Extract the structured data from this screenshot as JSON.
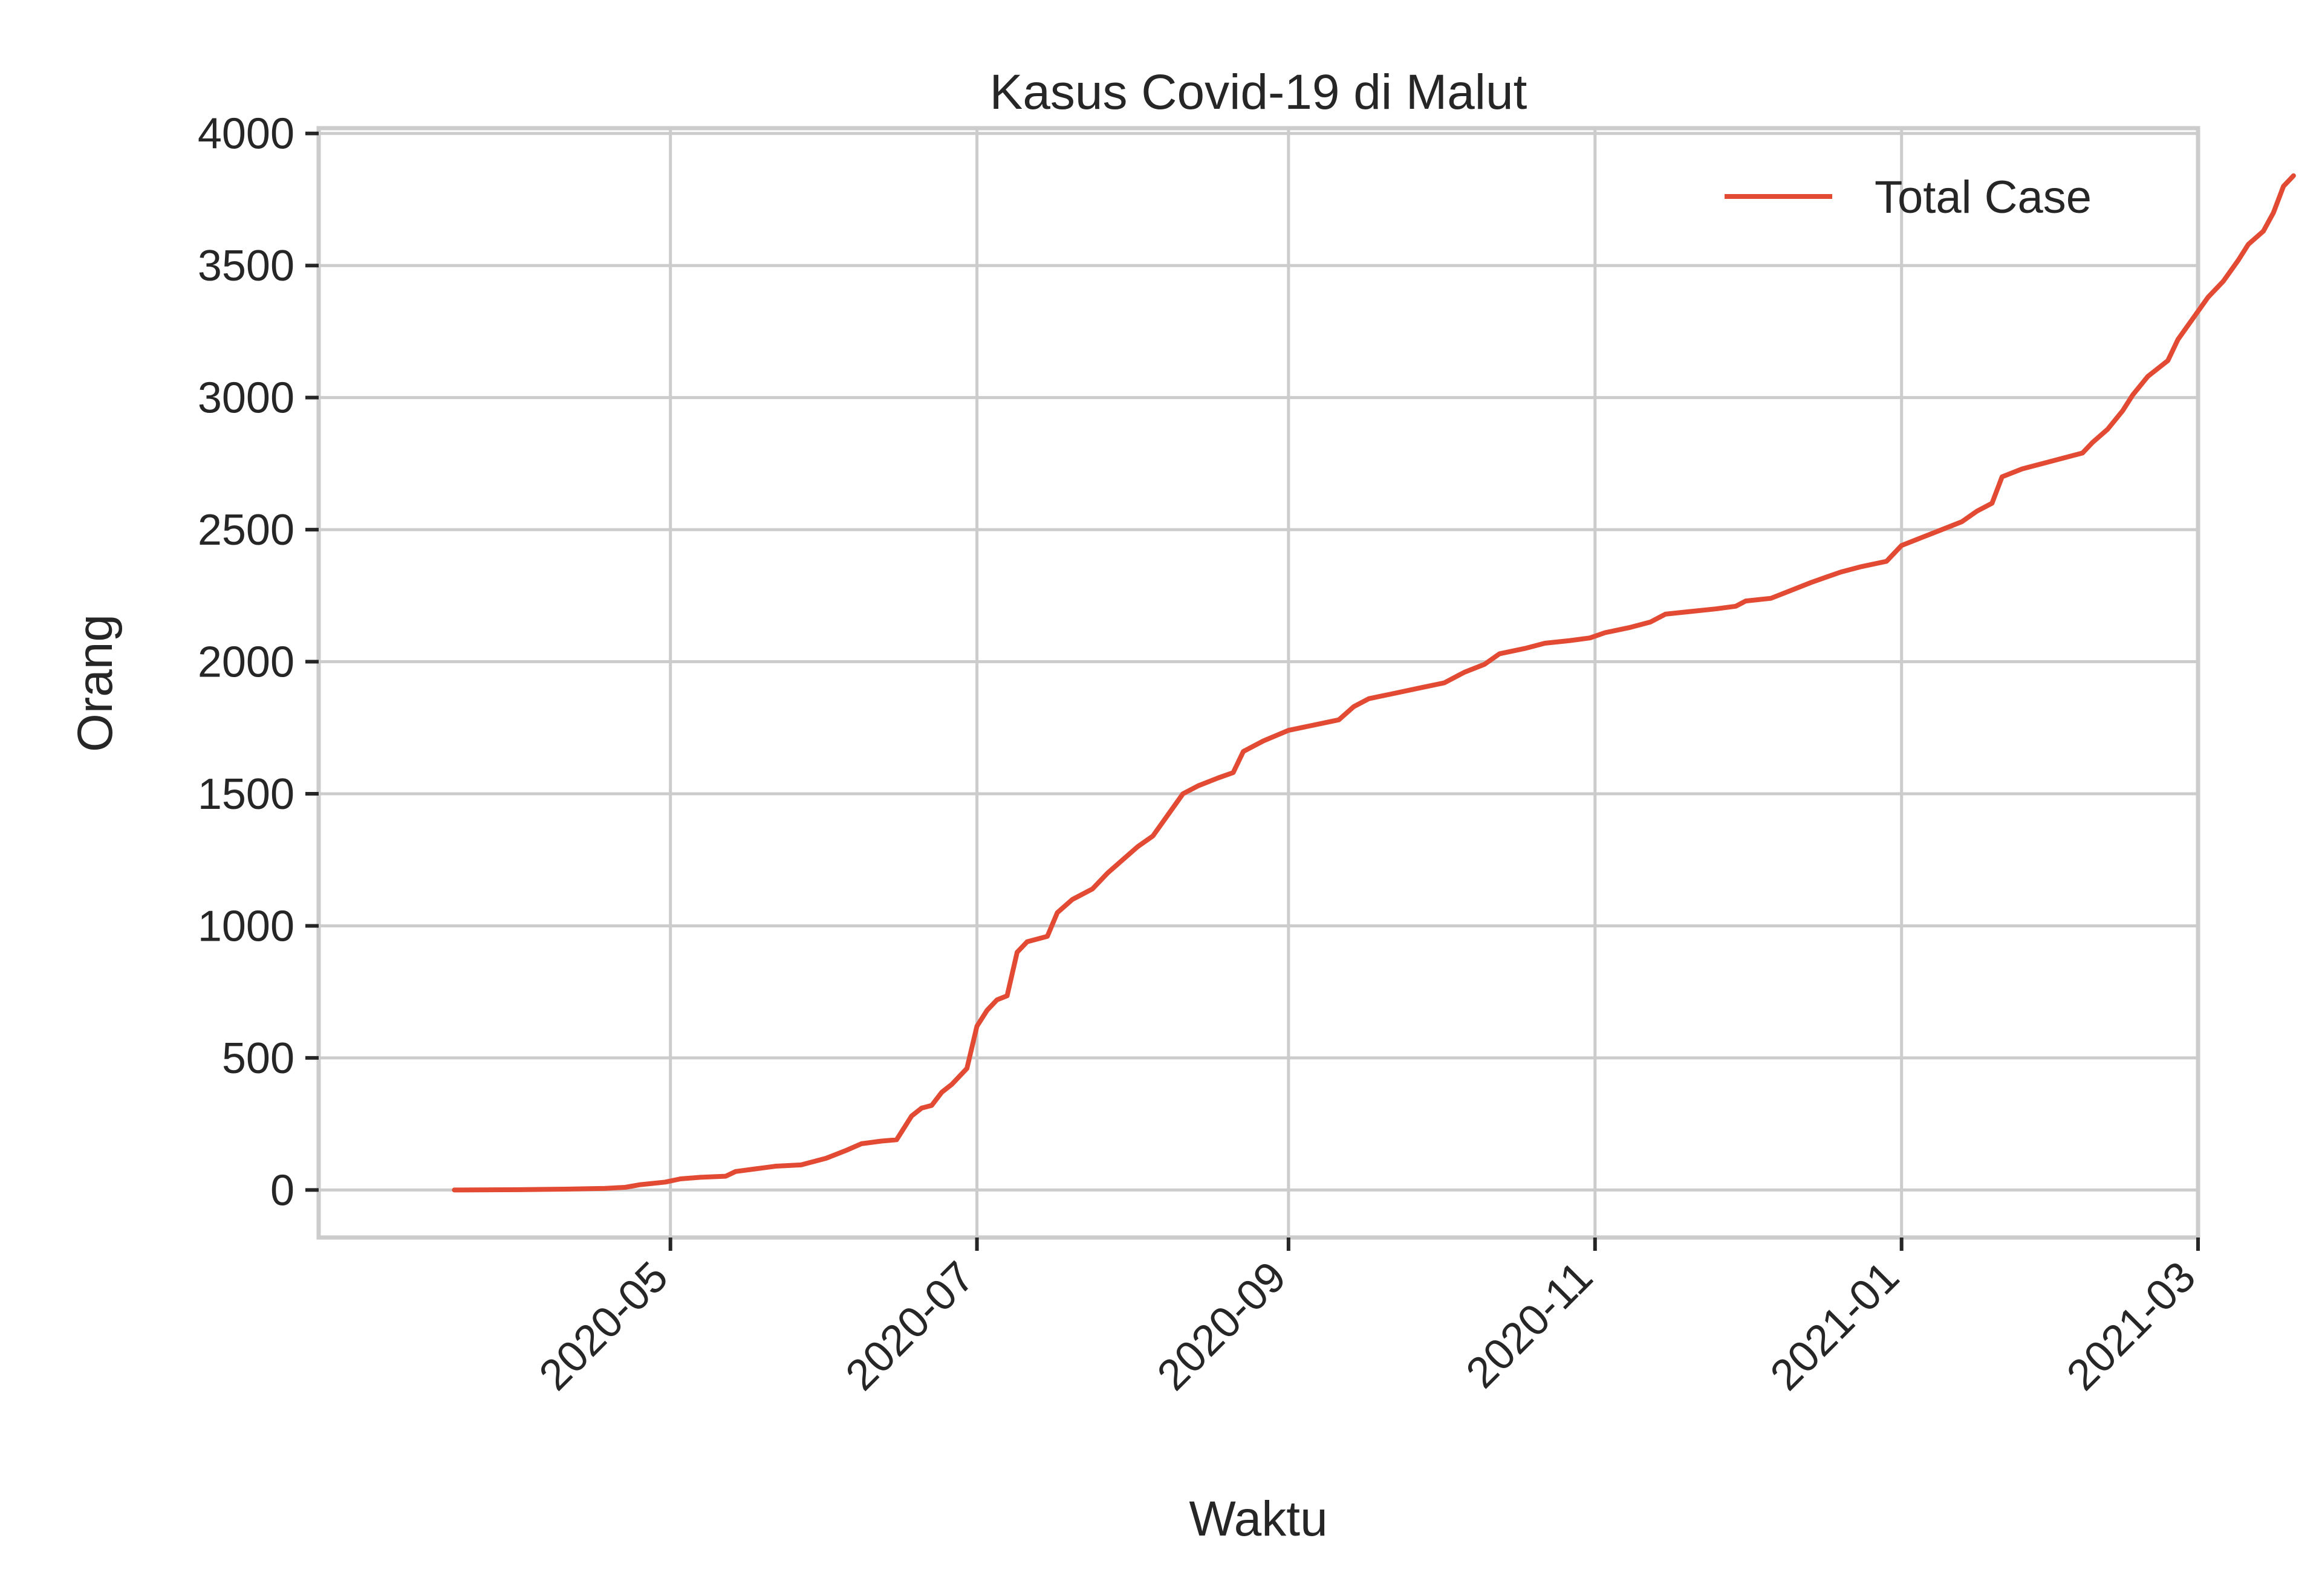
{
  "chart_data": {
    "type": "line",
    "title": "Kasus Covid-19 di Malut",
    "xlabel": "Waktu",
    "ylabel": "Orang",
    "xlim": [
      "2020-02-21",
      "2021-03-01"
    ],
    "ylim": [
      -180,
      4020
    ],
    "xticks": [
      "2020-05",
      "2020-07",
      "2020-09",
      "2020-11",
      "2021-01",
      "2021-03"
    ],
    "xtick_dates": [
      "2020-05-01",
      "2020-07-01",
      "2020-09-01",
      "2020-11-01",
      "2021-01-01",
      "2021-03-01"
    ],
    "yticks": [
      "0",
      "500",
      "1000",
      "1500",
      "2000",
      "2500",
      "3000",
      "3500",
      "4000"
    ],
    "ytick_values": [
      0,
      500,
      1000,
      1500,
      2000,
      2500,
      3000,
      3500,
      4000
    ],
    "grid": true,
    "legend_position": "top-right",
    "series": [
      {
        "name": "Total Case",
        "color": "#e24a33",
        "points": [
          [
            "2020-03-19",
            0
          ],
          [
            "2020-04-01",
            1
          ],
          [
            "2020-04-10",
            3
          ],
          [
            "2020-04-18",
            6
          ],
          [
            "2020-04-22",
            10
          ],
          [
            "2020-04-25",
            20
          ],
          [
            "2020-04-30",
            30
          ],
          [
            "2020-05-03",
            42
          ],
          [
            "2020-05-07",
            48
          ],
          [
            "2020-05-12",
            52
          ],
          [
            "2020-05-14",
            70
          ],
          [
            "2020-05-18",
            80
          ],
          [
            "2020-05-22",
            90
          ],
          [
            "2020-05-27",
            95
          ],
          [
            "2020-06-01",
            120
          ],
          [
            "2020-06-05",
            150
          ],
          [
            "2020-06-08",
            175
          ],
          [
            "2020-06-12",
            185
          ],
          [
            "2020-06-15",
            190
          ],
          [
            "2020-06-18",
            280
          ],
          [
            "2020-06-20",
            310
          ],
          [
            "2020-06-22",
            320
          ],
          [
            "2020-06-24",
            370
          ],
          [
            "2020-06-26",
            400
          ],
          [
            "2020-06-29",
            460
          ],
          [
            "2020-07-01",
            620
          ],
          [
            "2020-07-03",
            680
          ],
          [
            "2020-07-05",
            720
          ],
          [
            "2020-07-07",
            735
          ],
          [
            "2020-07-09",
            900
          ],
          [
            "2020-07-11",
            940
          ],
          [
            "2020-07-15",
            960
          ],
          [
            "2020-07-17",
            1050
          ],
          [
            "2020-07-20",
            1100
          ],
          [
            "2020-07-24",
            1140
          ],
          [
            "2020-07-27",
            1200
          ],
          [
            "2020-07-30",
            1250
          ],
          [
            "2020-08-02",
            1300
          ],
          [
            "2020-08-05",
            1340
          ],
          [
            "2020-08-08",
            1420
          ],
          [
            "2020-08-11",
            1500
          ],
          [
            "2020-08-14",
            1530
          ],
          [
            "2020-08-18",
            1560
          ],
          [
            "2020-08-21",
            1580
          ],
          [
            "2020-08-23",
            1660
          ],
          [
            "2020-08-27",
            1700
          ],
          [
            "2020-09-01",
            1740
          ],
          [
            "2020-09-06",
            1760
          ],
          [
            "2020-09-11",
            1780
          ],
          [
            "2020-09-14",
            1830
          ],
          [
            "2020-09-17",
            1860
          ],
          [
            "2020-09-22",
            1880
          ],
          [
            "2020-09-27",
            1900
          ],
          [
            "2020-10-02",
            1920
          ],
          [
            "2020-10-06",
            1960
          ],
          [
            "2020-10-10",
            1990
          ],
          [
            "2020-10-13",
            2030
          ],
          [
            "2020-10-18",
            2050
          ],
          [
            "2020-10-22",
            2070
          ],
          [
            "2020-10-27",
            2080
          ],
          [
            "2020-10-31",
            2090
          ],
          [
            "2020-11-03",
            2110
          ],
          [
            "2020-11-08",
            2130
          ],
          [
            "2020-11-12",
            2150
          ],
          [
            "2020-11-15",
            2180
          ],
          [
            "2020-11-20",
            2190
          ],
          [
            "2020-11-25",
            2200
          ],
          [
            "2020-11-29",
            2210
          ],
          [
            "2020-12-01",
            2230
          ],
          [
            "2020-12-06",
            2240
          ],
          [
            "2020-12-10",
            2270
          ],
          [
            "2020-12-14",
            2300
          ],
          [
            "2020-12-17",
            2320
          ],
          [
            "2020-12-20",
            2340
          ],
          [
            "2020-12-24",
            2360
          ],
          [
            "2020-12-29",
            2380
          ],
          [
            "2021-01-01",
            2440
          ],
          [
            "2021-01-05",
            2470
          ],
          [
            "2021-01-09",
            2500
          ],
          [
            "2021-01-13",
            2530
          ],
          [
            "2021-01-16",
            2570
          ],
          [
            "2021-01-19",
            2600
          ],
          [
            "2021-01-21",
            2700
          ],
          [
            "2021-01-25",
            2730
          ],
          [
            "2021-01-29",
            2750
          ],
          [
            "2021-02-02",
            2770
          ],
          [
            "2021-02-06",
            2790
          ],
          [
            "2021-02-08",
            2830
          ],
          [
            "2021-02-11",
            2880
          ],
          [
            "2021-02-14",
            2950
          ],
          [
            "2021-02-16",
            3010
          ],
          [
            "2021-02-19",
            3080
          ],
          [
            "2021-02-23",
            3140
          ],
          [
            "2021-02-25",
            3220
          ],
          [
            "2021-02-28",
            3300
          ],
          [
            "2021-03-03",
            3380
          ],
          [
            "2021-03-06",
            3440
          ],
          [
            "2021-03-09",
            3520
          ],
          [
            "2021-03-11",
            3580
          ],
          [
            "2021-03-14",
            3630
          ],
          [
            "2021-03-16",
            3700
          ],
          [
            "2021-03-18",
            3800
          ],
          [
            "2021-03-20",
            3840
          ]
        ]
      }
    ]
  }
}
